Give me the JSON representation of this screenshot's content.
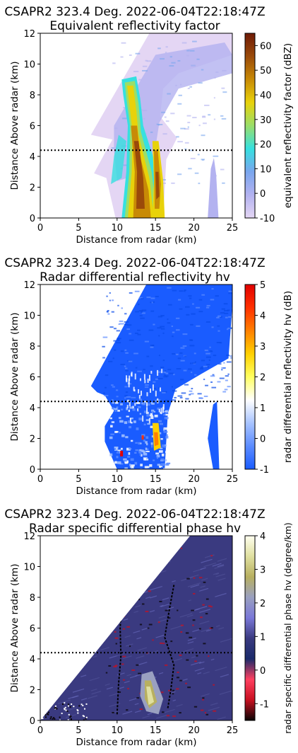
{
  "chart_data": [
    {
      "type": "heatmap",
      "title": "CSAPR2 323.4 Deg. 2022-06-04T22:18:47Z",
      "subtitle": "Equivalent reflectivity factor",
      "xlabel": "Distance from radar (km)",
      "ylabel": "Distance Above radar  (km)",
      "xlim": [
        0,
        25
      ],
      "ylim": [
        0,
        12
      ],
      "xticks": [
        0,
        5,
        10,
        15,
        20,
        25
      ],
      "yticks": [
        0,
        2,
        4,
        6,
        8,
        10,
        12
      ],
      "reference_line_y": 4.4,
      "colorbar": {
        "label": "equivalent reflectivity factor (dBZ)",
        "range": [
          -10,
          65
        ],
        "ticks": [
          -10,
          0,
          10,
          20,
          30,
          40,
          50,
          60
        ],
        "colors": [
          "#e4d6f4",
          "#b3b2f0",
          "#7aa6ee",
          "#36e0e0",
          "#9ade6a",
          "#e8d20a",
          "#c88a06",
          "#9a4a0a",
          "#6e1a06"
        ]
      }
    },
    {
      "type": "heatmap",
      "title": "CSAPR2 323.4 Deg. 2022-06-04T22:18:47Z",
      "subtitle": "Radar differential reflectivity hv",
      "xlabel": "Distance from radar (km)",
      "ylabel": "Distance Above radar  (km)",
      "xlim": [
        0,
        25
      ],
      "ylim": [
        0,
        12
      ],
      "xticks": [
        0,
        5,
        10,
        15,
        20,
        25
      ],
      "yticks": [
        0,
        2,
        4,
        6,
        8,
        10,
        12
      ],
      "reference_line_y": 4.4,
      "colorbar": {
        "label": "radar differential reflectivity hv (dB)",
        "range": [
          -1,
          5
        ],
        "ticks": [
          -1,
          0,
          1,
          2,
          3,
          4,
          5
        ],
        "colors": [
          "#1a5cff",
          "#5c8cff",
          "#a8c4ff",
          "#ffffff",
          "#ffff60",
          "#ffd000",
          "#ff8000",
          "#ff3000",
          "#e00000"
        ]
      }
    },
    {
      "type": "heatmap",
      "title": "CSAPR2 323.4 Deg. 2022-06-04T22:18:47Z",
      "subtitle": "Radar specific differential phase hv",
      "xlabel": "Distance from radar (km)",
      "ylabel": "Distance Above radar  (km)",
      "xlim": [
        0,
        25
      ],
      "ylim": [
        0,
        12
      ],
      "xticks": [
        0,
        5,
        10,
        15,
        20,
        25
      ],
      "yticks": [
        0,
        2,
        4,
        6,
        8,
        10,
        12
      ],
      "reference_line_y": 4.4,
      "colorbar": {
        "label": "radar specific differential phase hv (degree/km)",
        "range": [
          -1.5,
          4
        ],
        "ticks": [
          -1,
          0,
          1,
          2,
          3,
          4
        ],
        "colors": [
          "#0a0505",
          "#c81020",
          "#ff4060",
          "#1a2a6a",
          "#3a3a80",
          "#7a78d8",
          "#9aa0c0",
          "#b8b060",
          "#e0e0a0",
          "#fffff0"
        ]
      }
    }
  ]
}
